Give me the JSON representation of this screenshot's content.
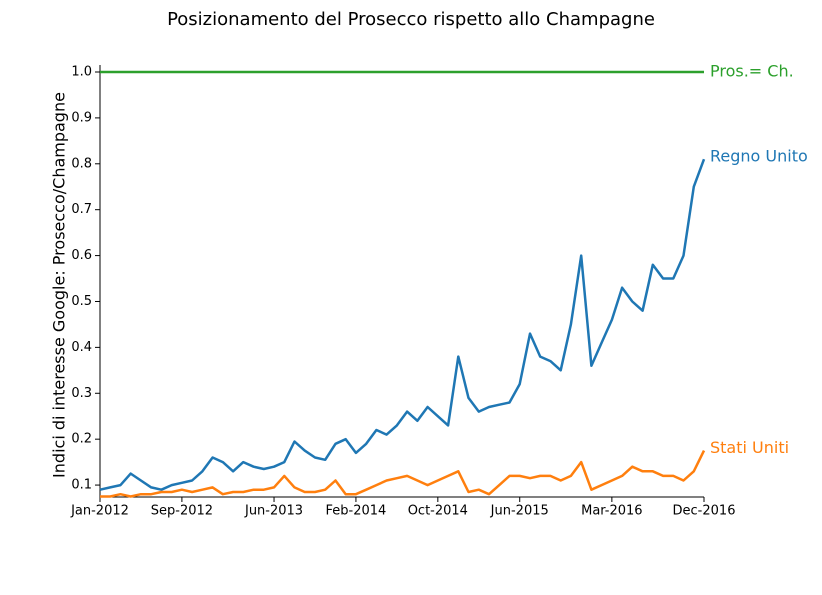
{
  "chart_data": {
    "type": "line",
    "title": "Posizionamento del Prosecco rispetto allo Champagne",
    "y_label": "Indici di interesse Google: Prosecco/Champagne",
    "x": [
      "2012-01",
      "2012-02",
      "2012-03",
      "2012-04",
      "2012-05",
      "2012-06",
      "2012-07",
      "2012-08",
      "2012-09",
      "2012-10",
      "2012-11",
      "2012-12",
      "2013-01",
      "2013-02",
      "2013-03",
      "2013-04",
      "2013-05",
      "2013-06",
      "2013-07",
      "2013-08",
      "2013-09",
      "2013-10",
      "2013-11",
      "2013-12",
      "2014-01",
      "2014-02",
      "2014-03",
      "2014-04",
      "2014-05",
      "2014-06",
      "2014-07",
      "2014-08",
      "2014-09",
      "2014-10",
      "2014-11",
      "2014-12",
      "2015-01",
      "2015-02",
      "2015-03",
      "2015-04",
      "2015-05",
      "2015-06",
      "2015-07",
      "2015-08",
      "2015-09",
      "2015-10",
      "2015-11",
      "2015-12",
      "2016-01",
      "2016-02",
      "2016-03",
      "2016-04",
      "2016-05",
      "2016-06",
      "2016-07",
      "2016-08",
      "2016-09",
      "2016-10",
      "2016-11",
      "2016-12"
    ],
    "series": [
      {
        "name": "Regno Unito",
        "color": "#1f77b4",
        "values": [
          0.09,
          0.095,
          0.1,
          0.125,
          0.11,
          0.095,
          0.09,
          0.1,
          0.105,
          0.11,
          0.13,
          0.16,
          0.15,
          0.13,
          0.15,
          0.14,
          0.135,
          0.14,
          0.15,
          0.195,
          0.175,
          0.16,
          0.155,
          0.19,
          0.2,
          0.17,
          0.19,
          0.22,
          0.21,
          0.23,
          0.26,
          0.24,
          0.27,
          0.25,
          0.23,
          0.38,
          0.29,
          0.26,
          0.27,
          0.275,
          0.28,
          0.32,
          0.43,
          0.38,
          0.37,
          0.35,
          0.45,
          0.6,
          0.36,
          0.41,
          0.46,
          0.53,
          0.5,
          0.48,
          0.58,
          0.55,
          0.55,
          0.6,
          0.75,
          0.81
        ]
      },
      {
        "name": "Stati Uniti",
        "color": "#ff7f0e",
        "values": [
          0.075,
          0.075,
          0.08,
          0.075,
          0.08,
          0.08,
          0.085,
          0.085,
          0.09,
          0.085,
          0.09,
          0.095,
          0.08,
          0.085,
          0.085,
          0.09,
          0.09,
          0.095,
          0.12,
          0.095,
          0.085,
          0.085,
          0.09,
          0.11,
          0.08,
          0.08,
          0.09,
          0.1,
          0.11,
          0.115,
          0.12,
          0.11,
          0.1,
          0.11,
          0.12,
          0.13,
          0.085,
          0.09,
          0.08,
          0.1,
          0.12,
          0.12,
          0.115,
          0.12,
          0.12,
          0.11,
          0.12,
          0.15,
          0.09,
          0.1,
          0.11,
          0.12,
          0.14,
          0.13,
          0.13,
          0.12,
          0.12,
          0.11,
          0.13,
          0.175
        ]
      }
    ],
    "reference_line": {
      "value": 1,
      "label": "Pros.= Ch.",
      "color": "#2ca02c"
    },
    "xlim": [
      "2012-01",
      "2016-12"
    ],
    "xticks": [
      {
        "value": "2012-01",
        "label": "Jan-2012"
      },
      {
        "value": "2012-09",
        "label": "Sep-2012"
      },
      {
        "value": "2013-06",
        "label": "Jun-2013"
      },
      {
        "value": "2014-02",
        "label": "Feb-2014"
      },
      {
        "value": "2014-10",
        "label": "Oct-2014"
      },
      {
        "value": "2015-06",
        "label": "Jun-2015"
      },
      {
        "value": "2016-03",
        "label": "Mar-2016"
      },
      {
        "value": "2016-12",
        "label": "Dec-2016"
      }
    ],
    "ylim": [
      0.074,
      1.0
    ],
    "yticks": [
      0.1,
      0.2,
      0.3,
      0.4,
      0.5,
      0.6,
      0.7,
      0.8,
      0.9,
      {
        "value": 1,
        "label": "1.0"
      }
    ]
  }
}
